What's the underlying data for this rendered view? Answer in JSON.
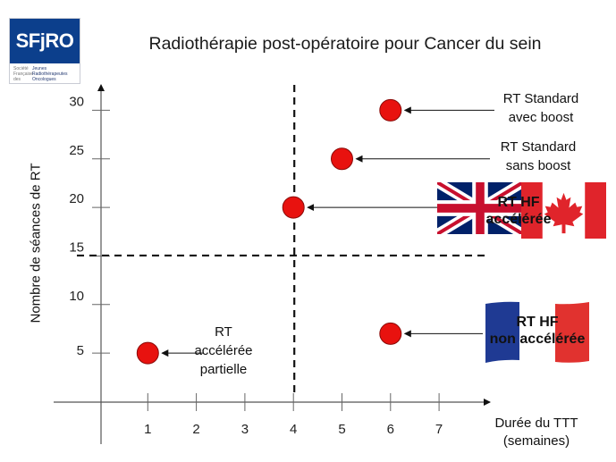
{
  "logo": {
    "text": "SFjRO",
    "lines": [
      {
        "left": "Société",
        "right": "Jeunes"
      },
      {
        "left": "Française",
        "right": "Radiothérapeutes"
      },
      {
        "left": "des",
        "right": "Oncologues"
      }
    ]
  },
  "chart_data": {
    "type": "scatter",
    "title": "Radiothérapie post-opératoire pour Cancer du sein",
    "xlabel": "Durée du TTT (semaines)",
    "xlabel_lines": [
      "Durée du TTT",
      "(semaines)"
    ],
    "ylabel": "Nombre de séances de RT",
    "x_ticks": [
      1,
      2,
      3,
      4,
      5,
      6,
      7
    ],
    "y_ticks": [
      5,
      10,
      15,
      20,
      25,
      30
    ],
    "xlim": [
      0,
      8
    ],
    "ylim": [
      0,
      33
    ],
    "reference_lines": [
      {
        "orientation": "vertical",
        "value": 4,
        "style": "dashed"
      },
      {
        "orientation": "horizontal",
        "value": 15,
        "style": "dashed"
      }
    ],
    "points": [
      {
        "x": 6,
        "y": 30,
        "label_lines": [
          "RT Standard",
          "avec boost"
        ]
      },
      {
        "x": 5,
        "y": 25,
        "label_lines": [
          "RT Standard",
          "sans boost"
        ]
      },
      {
        "x": 4,
        "y": 20,
        "label_lines": [
          "RT HF",
          "accélérée"
        ],
        "flags": [
          "uk-flag",
          "canada-flag"
        ]
      },
      {
        "x": 6,
        "y": 7,
        "label_lines": [
          "RT HF",
          "non accélérée"
        ],
        "flags": [
          "france-flag"
        ]
      },
      {
        "x": 1,
        "y": 5,
        "label_lines": [
          "RT",
          "accélérée",
          "partielle"
        ]
      }
    ],
    "point_color": "#e8120f",
    "grid": false
  }
}
